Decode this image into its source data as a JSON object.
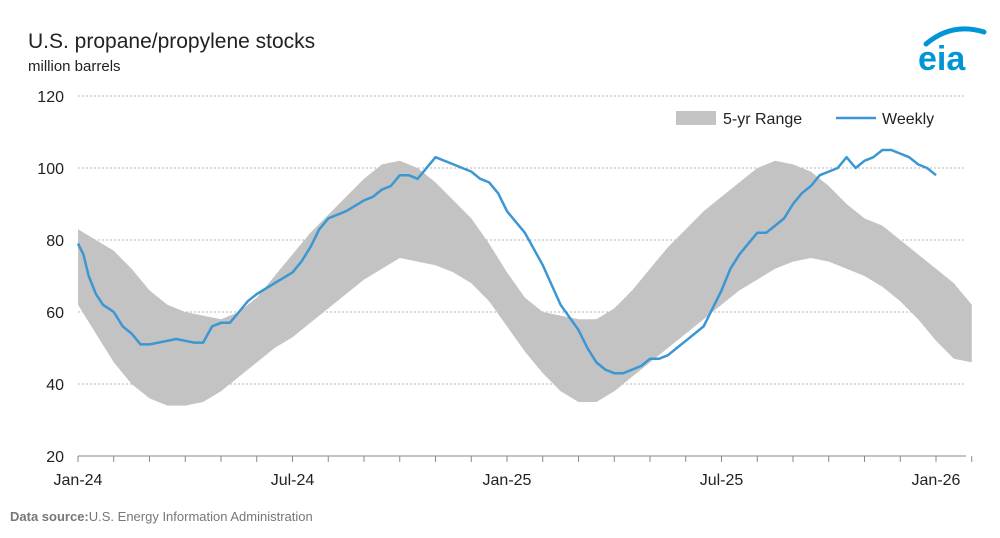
{
  "header": {
    "title": "U.S. propane/propylene stocks",
    "units": "million barrels"
  },
  "logo": {
    "text": "eia",
    "color": "#0096d6"
  },
  "source": {
    "label": "Data source:",
    "text": "U.S. Energy Information Administration"
  },
  "colors": {
    "weekly": "#3b97d3",
    "range": "#c3c3c3",
    "grid": "#b5b5b5"
  },
  "chart_data": {
    "type": "line",
    "title": "U.S. propane/propylene stocks",
    "ylabel": "million barrels",
    "ylim": [
      20,
      120
    ],
    "yticks": [
      20,
      40,
      60,
      80,
      100,
      120
    ],
    "xlim": [
      0,
      25
    ],
    "xticks": [
      {
        "pos": 0,
        "label": "Jan-24"
      },
      {
        "pos": 6,
        "label": "Jul-24"
      },
      {
        "pos": 12,
        "label": "Jan-25"
      },
      {
        "pos": 18,
        "label": "Jul-25"
      },
      {
        "pos": 24,
        "label": "Jan-26"
      }
    ],
    "x_unit": "months since Jan 2024",
    "legend": [
      "5-yr Range",
      "Weekly"
    ],
    "legend_position": "top-right",
    "series": [
      {
        "name": "5-yr Range",
        "x": [
          0,
          0.5,
          1,
          1.5,
          2,
          2.5,
          3,
          3.5,
          4,
          4.5,
          5,
          5.5,
          6,
          6.5,
          7,
          7.5,
          8,
          8.5,
          9,
          9.5,
          10,
          10.5,
          11,
          11.5,
          12,
          12.5,
          13,
          13.5,
          14,
          14.5,
          15,
          15.5,
          16,
          16.5,
          17,
          17.5,
          18,
          18.5,
          19,
          19.5,
          20,
          20.5,
          21,
          21.5,
          22,
          22.5,
          23,
          23.5,
          24,
          24.5,
          25
        ],
        "high": [
          83,
          80,
          77,
          72,
          66,
          62,
          60,
          59,
          58,
          60,
          64,
          70,
          76,
          82,
          87,
          92,
          97,
          101,
          102,
          100,
          96,
          91,
          86,
          79,
          71,
          64,
          60,
          59,
          58,
          58,
          61,
          66,
          72,
          78,
          83,
          88,
          92,
          96,
          100,
          102,
          101,
          99,
          95,
          90,
          86,
          84,
          80,
          76,
          72,
          68,
          62
        ],
        "low": [
          62,
          54,
          46,
          40,
          36,
          34,
          34,
          35,
          38,
          42,
          46,
          50,
          53,
          57,
          61,
          65,
          69,
          72,
          75,
          74,
          73,
          71,
          68,
          63,
          56,
          49,
          43,
          38,
          35,
          35,
          38,
          42,
          46,
          50,
          54,
          58,
          62,
          66,
          69,
          72,
          74,
          75,
          74,
          72,
          70,
          67,
          63,
          58,
          52,
          47,
          46
        ]
      },
      {
        "name": "Weekly",
        "x": [
          0,
          0.15,
          0.3,
          0.5,
          0.7,
          1,
          1.25,
          1.5,
          1.75,
          2,
          2.25,
          2.5,
          2.75,
          3,
          3.25,
          3.5,
          3.75,
          4,
          4.25,
          4.5,
          4.75,
          5,
          5.5,
          6,
          6.25,
          6.5,
          6.75,
          7,
          7.5,
          8,
          8.25,
          8.5,
          8.75,
          9,
          9.25,
          9.5,
          10,
          10.5,
          11,
          11.25,
          11.5,
          11.75,
          12,
          12.5,
          13,
          13.5,
          14,
          14.25,
          14.5,
          14.75,
          15,
          15.25,
          15.5,
          15.75,
          16,
          16.25,
          16.5,
          16.75,
          17,
          17.25,
          17.5,
          17.75,
          18,
          18.25,
          18.5,
          18.75,
          19,
          19.25,
          19.5,
          19.75,
          20,
          20.25,
          20.5,
          20.75,
          21,
          21.25,
          21.5,
          21.75,
          22,
          22.25,
          22.5,
          22.75,
          23,
          23.25,
          23.5,
          23.75,
          24
        ],
        "values": [
          79,
          76,
          70,
          65,
          62,
          60,
          56,
          54,
          51,
          51,
          51.5,
          52,
          52.5,
          52,
          51.5,
          51.5,
          56,
          57,
          57,
          60,
          63,
          65,
          68,
          71,
          74,
          78,
          83,
          86,
          88,
          91,
          92,
          94,
          95,
          98,
          98,
          97,
          103,
          101,
          99,
          97,
          96,
          93,
          88,
          82,
          73,
          62,
          55,
          50,
          46,
          44,
          43,
          43,
          44,
          45,
          47,
          47,
          48,
          50,
          52,
          54,
          56,
          61,
          66,
          72,
          76,
          79,
          82,
          82,
          84,
          86,
          90,
          93,
          95,
          98,
          99,
          100,
          103,
          100,
          102,
          103,
          105,
          105,
          104,
          103,
          101,
          100,
          98
        ]
      }
    ]
  }
}
